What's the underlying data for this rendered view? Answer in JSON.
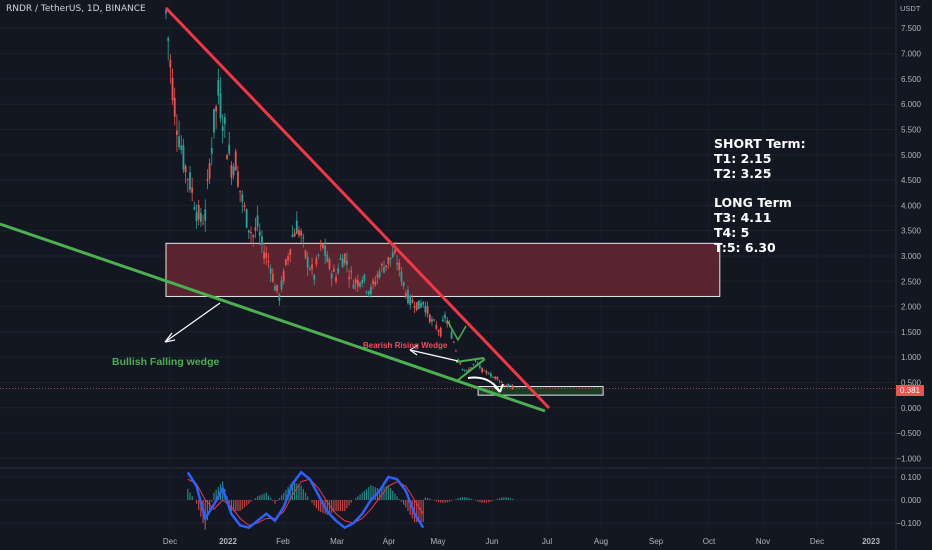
{
  "header": {
    "symbol_line": "RNDR / TetherUS, 1D, BINANCE"
  },
  "axis": {
    "unit": "USDT",
    "price_ticks": [
      "7.500",
      "7.000",
      "6.500",
      "6.000",
      "5.500",
      "5.000",
      "4.500",
      "4.000",
      "3.500",
      "3.000",
      "2.500",
      "2.000",
      "1.500",
      "1.000",
      "0.500",
      "0.000",
      "−0.500",
      "−1.000"
    ],
    "price_values": [
      7.5,
      7.0,
      6.5,
      6.0,
      5.5,
      5.0,
      4.5,
      4.0,
      3.5,
      3.0,
      2.5,
      2.0,
      1.5,
      1.0,
      0.5,
      0.0,
      -0.5,
      -1.0
    ],
    "osc_ticks": [
      "0.100",
      "0.000",
      "−0.100"
    ],
    "osc_values": [
      0.1,
      0.0,
      -0.1
    ],
    "time_ticks": [
      "Dec",
      "2022",
      "Feb",
      "Mar",
      "Apr",
      "May",
      "Jun",
      "Jul",
      "Aug",
      "Sep",
      "Oct",
      "Nov",
      "Dec",
      "2023"
    ],
    "time_bold": [
      false,
      true,
      false,
      false,
      false,
      false,
      false,
      false,
      false,
      false,
      false,
      false,
      false,
      true
    ],
    "last_price": "0.381"
  },
  "annotations": {
    "short_title": "SHORT Term:",
    "t1": "T1: 2.15",
    "t2": "T2: 3.25",
    "long_title": "LONG Term",
    "t3": "T3: 4.11",
    "t4": "T4: 5",
    "t5": "T:5: 6.30",
    "bullish_label": "Bullish Falling wedge",
    "bearish_label": "Bearish Rising Wedge"
  },
  "colors": {
    "background": "#131722",
    "up": "#26a69a",
    "down": "#ef5350",
    "resistance_line": "#f23645",
    "support_line": "#4caf50",
    "zone_fill": "#8b2c3a",
    "macd_line": "#2962ff",
    "signal_line": "#f23645"
  },
  "chart_data": {
    "type": "candlestick",
    "ylim": [
      -1.15,
      7.9
    ],
    "ylim_osc": [
      -0.13,
      0.13
    ],
    "price_path": [
      [
        0,
        7.8
      ],
      [
        2,
        6.8
      ],
      [
        4,
        6.0
      ],
      [
        6,
        5.4
      ],
      [
        8,
        4.9
      ],
      [
        10,
        4.6
      ],
      [
        12,
        4.3
      ],
      [
        14,
        3.9
      ],
      [
        16,
        3.7
      ],
      [
        18,
        3.8
      ],
      [
        20,
        4.8
      ],
      [
        22,
        5.6
      ],
      [
        24,
        6.2
      ],
      [
        26,
        5.8
      ],
      [
        28,
        5.2
      ],
      [
        30,
        4.8
      ],
      [
        32,
        4.9
      ],
      [
        34,
        4.3
      ],
      [
        36,
        3.9
      ],
      [
        38,
        3.6
      ],
      [
        40,
        3.4
      ],
      [
        42,
        3.6
      ],
      [
        44,
        3.2
      ],
      [
        46,
        3.0
      ],
      [
        48,
        2.8
      ],
      [
        50,
        2.4
      ],
      [
        52,
        2.2
      ],
      [
        54,
        2.6
      ],
      [
        56,
        3.0
      ],
      [
        58,
        3.4
      ],
      [
        60,
        3.6
      ],
      [
        62,
        3.4
      ],
      [
        64,
        3.0
      ],
      [
        66,
        2.8
      ],
      [
        68,
        2.6
      ],
      [
        70,
        3.0
      ],
      [
        72,
        3.2
      ],
      [
        74,
        2.9
      ],
      [
        76,
        2.7
      ],
      [
        78,
        2.6
      ],
      [
        80,
        2.9
      ],
      [
        82,
        3.0
      ],
      [
        84,
        2.7
      ],
      [
        86,
        2.5
      ],
      [
        88,
        2.5
      ],
      [
        90,
        2.6
      ],
      [
        92,
        2.4
      ],
      [
        94,
        2.3
      ],
      [
        96,
        2.5
      ],
      [
        98,
        2.7
      ],
      [
        100,
        2.8
      ],
      [
        102,
        2.9
      ],
      [
        104,
        3.0
      ],
      [
        106,
        2.9
      ],
      [
        108,
        2.6
      ],
      [
        110,
        2.3
      ],
      [
        112,
        2.1
      ],
      [
        114,
        2.1
      ],
      [
        116,
        2.0
      ],
      [
        118,
        2.1
      ],
      [
        120,
        1.9
      ],
      [
        122,
        1.7
      ],
      [
        124,
        1.6
      ],
      [
        126,
        1.5
      ],
      [
        128,
        1.8
      ],
      [
        130,
        1.6
      ],
      [
        132,
        1.3
      ],
      [
        134,
        1.0
      ],
      [
        136,
        0.8
      ],
      [
        138,
        0.7
      ],
      [
        140,
        0.8
      ],
      [
        142,
        0.9
      ],
      [
        144,
        0.8
      ],
      [
        146,
        0.7
      ],
      [
        148,
        0.7
      ],
      [
        150,
        0.6
      ],
      [
        152,
        0.6
      ],
      [
        154,
        0.5
      ],
      [
        156,
        0.45
      ],
      [
        158,
        0.42
      ],
      [
        160,
        0.38
      ]
    ],
    "resistance_line": [
      [
        0,
        7.9
      ],
      [
        160,
        0.1
      ]
    ],
    "support_line": [
      [
        -48,
        3.6
      ],
      [
        160,
        0.0
      ]
    ],
    "zone": {
      "x0": 0,
      "x1": 160,
      "y0": 2.2,
      "y1": 3.25
    },
    "target_box": {
      "x0": 134,
      "x1": 160,
      "y0": 0.25,
      "y1": 0.42
    },
    "macd_line": [
      [
        10,
        0.12
      ],
      [
        14,
        0.06
      ],
      [
        18,
        -0.08
      ],
      [
        22,
        -0.02
      ],
      [
        26,
        0.05
      ],
      [
        30,
        -0.06
      ],
      [
        34,
        -0.11
      ],
      [
        38,
        -0.12
      ],
      [
        42,
        -0.09
      ],
      [
        46,
        -0.06
      ],
      [
        50,
        -0.09
      ],
      [
        54,
        -0.03
      ],
      [
        58,
        0.07
      ],
      [
        62,
        0.12
      ],
      [
        66,
        0.09
      ],
      [
        70,
        0.02
      ],
      [
        74,
        -0.05
      ],
      [
        78,
        -0.09
      ],
      [
        82,
        -0.12
      ],
      [
        86,
        -0.1
      ],
      [
        90,
        -0.06
      ],
      [
        94,
        0.0
      ],
      [
        98,
        0.04
      ],
      [
        102,
        0.1
      ],
      [
        106,
        0.09
      ],
      [
        110,
        0.04
      ],
      [
        114,
        -0.06
      ],
      [
        118,
        -0.12
      ]
    ],
    "signal_line": [
      [
        10,
        0.09
      ],
      [
        14,
        0.07
      ],
      [
        18,
        0.0
      ],
      [
        22,
        -0.04
      ],
      [
        26,
        0.0
      ],
      [
        30,
        -0.03
      ],
      [
        34,
        -0.08
      ],
      [
        38,
        -0.11
      ],
      [
        42,
        -0.1
      ],
      [
        46,
        -0.08
      ],
      [
        50,
        -0.08
      ],
      [
        54,
        -0.05
      ],
      [
        58,
        0.02
      ],
      [
        62,
        0.08
      ],
      [
        66,
        0.09
      ],
      [
        70,
        0.05
      ],
      [
        74,
        -0.01
      ],
      [
        78,
        -0.06
      ],
      [
        82,
        -0.09
      ],
      [
        86,
        -0.1
      ],
      [
        90,
        -0.08
      ],
      [
        94,
        -0.04
      ],
      [
        98,
        0.01
      ],
      [
        102,
        0.06
      ],
      [
        106,
        0.08
      ],
      [
        110,
        0.06
      ],
      [
        114,
        0.0
      ],
      [
        118,
        -0.06
      ]
    ]
  }
}
